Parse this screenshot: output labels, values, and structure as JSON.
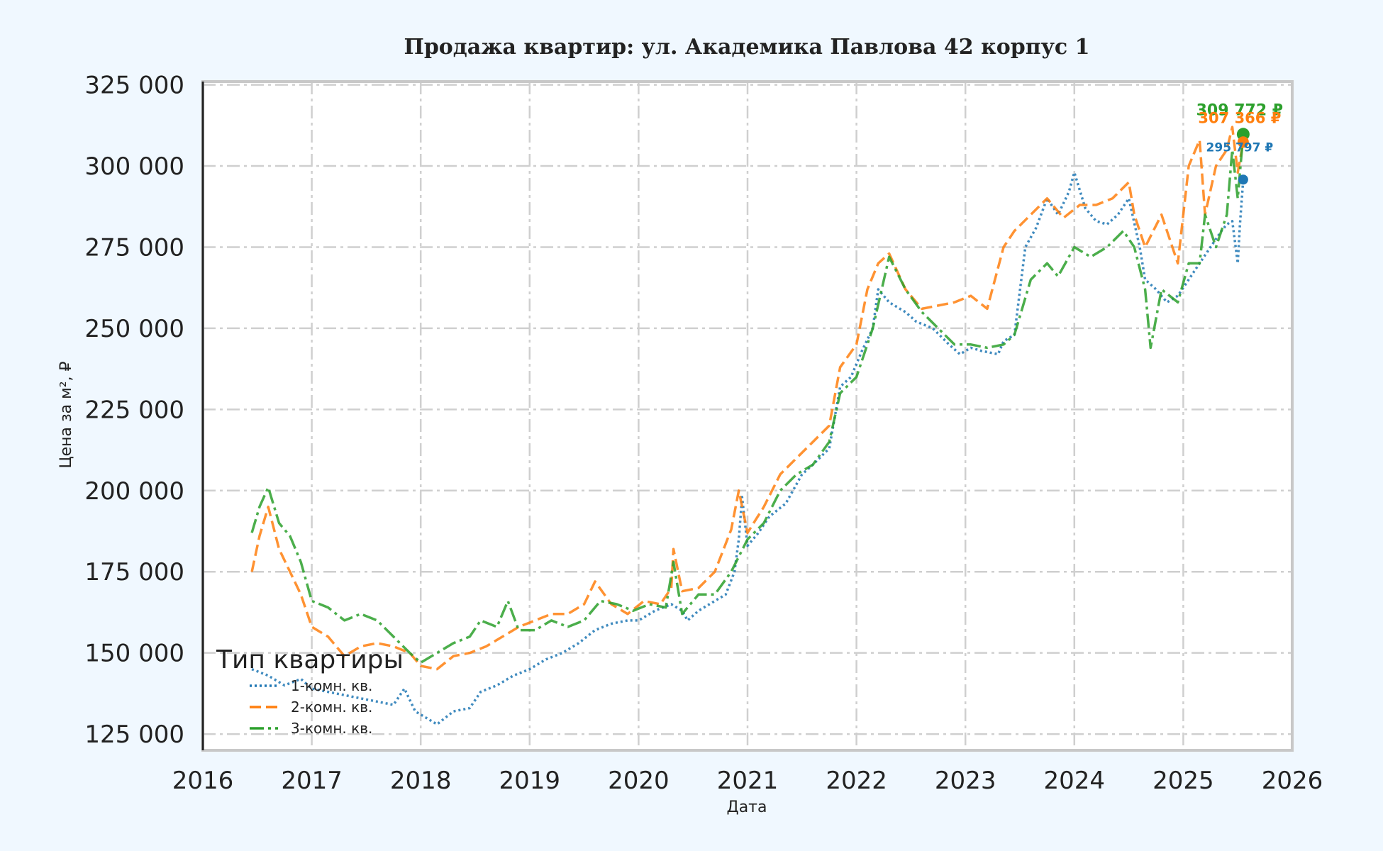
{
  "chart_data": {
    "type": "line",
    "title": "Продажа квартир: ул. Академика Павлова 42 корпус 1",
    "xlabel": "Дата",
    "ylabel": "Цена за м², ₽",
    "xlim": [
      2016.0,
      2026.0
    ],
    "ylim": [
      120000,
      326000
    ],
    "x_ticks": [
      2016,
      2017,
      2018,
      2019,
      2020,
      2021,
      2022,
      2023,
      2024,
      2025,
      2026
    ],
    "x_tick_labels": [
      "2016",
      "2017",
      "2018",
      "2019",
      "2020",
      "2021",
      "2022",
      "2023",
      "2024",
      "2025",
      "2026"
    ],
    "y_ticks": [
      125000,
      150000,
      175000,
      200000,
      225000,
      250000,
      275000,
      300000,
      325000
    ],
    "y_tick_labels": [
      "125 000",
      "150 000",
      "175 000",
      "200 000",
      "225 000",
      "250 000",
      "275 000",
      "300 000",
      "325 000"
    ],
    "grid": true,
    "legend": {
      "title": "Тип квартиры",
      "placement": "lower-left"
    },
    "series": [
      {
        "name": "1-комн. кв.",
        "color": "#1f77b4",
        "style": "dotted",
        "x": [
          2016.45,
          2016.6,
          2016.75,
          2016.9,
          2017.0,
          2017.15,
          2017.3,
          2017.45,
          2017.6,
          2017.75,
          2017.85,
          2017.95,
          2018.05,
          2018.15,
          2018.3,
          2018.45,
          2018.55,
          2018.7,
          2018.85,
          2019.0,
          2019.15,
          2019.3,
          2019.45,
          2019.6,
          2019.75,
          2019.9,
          2020.0,
          2020.15,
          2020.3,
          2020.4,
          2020.45,
          2020.55,
          2020.7,
          2020.8,
          2020.88,
          2020.92,
          2020.95,
          2021.0,
          2021.1,
          2021.2,
          2021.35,
          2021.5,
          2021.6,
          2021.75,
          2021.85,
          2021.95,
          2022.05,
          2022.15,
          2022.2,
          2022.3,
          2022.45,
          2022.55,
          2022.7,
          2022.85,
          2022.95,
          2023.05,
          2023.15,
          2023.3,
          2023.35,
          2023.45,
          2023.55,
          2023.65,
          2023.75,
          2023.85,
          2023.95,
          2024.0,
          2024.1,
          2024.2,
          2024.3,
          2024.4,
          2024.5,
          2024.6,
          2024.65,
          2024.75,
          2024.85,
          2024.95,
          2025.05,
          2025.15,
          2025.25,
          2025.35,
          2025.4,
          2025.45,
          2025.5,
          2025.52,
          2025.55
        ],
        "y": [
          145000,
          143000,
          140000,
          142000,
          139000,
          138000,
          137000,
          136000,
          135000,
          134000,
          139000,
          132000,
          130000,
          128000,
          132000,
          133000,
          138000,
          140000,
          143000,
          145000,
          148000,
          150000,
          153000,
          157000,
          159000,
          160000,
          160000,
          163000,
          165000,
          163000,
          160000,
          163000,
          166000,
          168000,
          175000,
          185000,
          198000,
          183000,
          187000,
          192000,
          196000,
          205000,
          208000,
          213000,
          232000,
          235000,
          243000,
          250000,
          262000,
          258000,
          255000,
          252000,
          250000,
          245000,
          242000,
          244000,
          243000,
          242000,
          246000,
          248000,
          275000,
          281000,
          290000,
          285000,
          292000,
          298000,
          287000,
          283000,
          282000,
          285000,
          290000,
          275000,
          265000,
          262000,
          258000,
          260000,
          265000,
          270000,
          275000,
          280000,
          282000,
          283000,
          270000,
          282000,
          295797
        ]
      },
      {
        "name": "2-комн. кв.",
        "color": "#ff7f0e",
        "style": "dashed",
        "x": [
          2016.45,
          2016.52,
          2016.6,
          2016.7,
          2016.8,
          2016.9,
          2017.0,
          2017.15,
          2017.3,
          2017.45,
          2017.6,
          2017.75,
          2017.9,
          2018.0,
          2018.15,
          2018.3,
          2018.45,
          2018.6,
          2018.75,
          2018.9,
          2019.05,
          2019.2,
          2019.35,
          2019.5,
          2019.6,
          2019.75,
          2019.9,
          2020.05,
          2020.2,
          2020.3,
          2020.32,
          2020.4,
          2020.55,
          2020.7,
          2020.85,
          2020.92,
          2021.0,
          2021.15,
          2021.3,
          2021.45,
          2021.6,
          2021.75,
          2021.85,
          2022.0,
          2022.1,
          2022.2,
          2022.3,
          2022.45,
          2022.6,
          2022.75,
          2022.9,
          2023.05,
          2023.2,
          2023.35,
          2023.45,
          2023.6,
          2023.75,
          2023.9,
          2024.05,
          2024.2,
          2024.35,
          2024.5,
          2024.55,
          2024.65,
          2024.8,
          2024.95,
          2025.05,
          2025.15,
          2025.2,
          2025.3,
          2025.4,
          2025.45,
          2025.5,
          2025.55
        ],
        "y": [
          175000,
          186000,
          195000,
          182000,
          175000,
          168000,
          158000,
          155000,
          149000,
          152000,
          153000,
          152000,
          150000,
          146000,
          145000,
          149000,
          150000,
          152000,
          155000,
          158000,
          160000,
          162000,
          162000,
          165000,
          172000,
          165000,
          162000,
          166000,
          165000,
          170000,
          182000,
          169000,
          170000,
          175000,
          188000,
          200000,
          187000,
          195000,
          205000,
          210000,
          215000,
          220000,
          238000,
          245000,
          262000,
          270000,
          273000,
          262000,
          256000,
          257000,
          258000,
          260000,
          256000,
          275000,
          280000,
          285000,
          290000,
          284000,
          288000,
          288000,
          290000,
          295000,
          285000,
          275000,
          285000,
          270000,
          300000,
          308000,
          285000,
          300000,
          305000,
          312000,
          298000,
          307366
        ]
      },
      {
        "name": "3-комн. кв.",
        "color": "#2ca02c",
        "style": "dashdot",
        "x": [
          2016.45,
          2016.52,
          2016.6,
          2016.7,
          2016.8,
          2016.9,
          2017.0,
          2017.15,
          2017.3,
          2017.45,
          2017.6,
          2017.75,
          2017.9,
          2018.0,
          2018.15,
          2018.3,
          2018.45,
          2018.55,
          2018.7,
          2018.8,
          2018.9,
          2019.05,
          2019.2,
          2019.35,
          2019.5,
          2019.65,
          2019.8,
          2019.95,
          2020.1,
          2020.25,
          2020.32,
          2020.4,
          2020.55,
          2020.7,
          2020.85,
          2021.0,
          2021.15,
          2021.3,
          2021.45,
          2021.6,
          2021.75,
          2021.85,
          2022.0,
          2022.15,
          2022.3,
          2022.45,
          2022.6,
          2022.75,
          2022.9,
          2023.05,
          2023.2,
          2023.35,
          2023.45,
          2023.6,
          2023.75,
          2023.85,
          2024.0,
          2024.15,
          2024.3,
          2024.45,
          2024.55,
          2024.65,
          2024.7,
          2024.8,
          2024.95,
          2025.05,
          2025.15,
          2025.2,
          2025.3,
          2025.4,
          2025.45,
          2025.5,
          2025.55
        ],
        "y": [
          187000,
          195000,
          201000,
          190000,
          186000,
          178000,
          166000,
          164000,
          160000,
          162000,
          160000,
          155000,
          150000,
          147000,
          150000,
          153000,
          155000,
          160000,
          158000,
          166000,
          157000,
          157000,
          160000,
          158000,
          160000,
          166000,
          165000,
          163000,
          165000,
          164000,
          178000,
          162000,
          168000,
          168000,
          175000,
          185000,
          190000,
          200000,
          205000,
          208000,
          215000,
          230000,
          235000,
          250000,
          272000,
          262000,
          255000,
          250000,
          245000,
          245000,
          244000,
          245000,
          248000,
          265000,
          270000,
          266000,
          275000,
          272000,
          275000,
          280000,
          275000,
          262000,
          244000,
          262000,
          258000,
          270000,
          270000,
          285000,
          275000,
          285000,
          305000,
          290000,
          309772
        ]
      }
    ],
    "end_labels": [
      {
        "series": "3-комн. кв.",
        "x": 2025.55,
        "y": 309772,
        "text": "309 772 ₽"
      },
      {
        "series": "2-комн. кв.",
        "x": 2025.55,
        "y": 307366,
        "text": "307 366 ₽"
      },
      {
        "series": "1-комн. кв.",
        "x": 2025.55,
        "y": 295797,
        "text": "295 797 ₽"
      }
    ]
  }
}
